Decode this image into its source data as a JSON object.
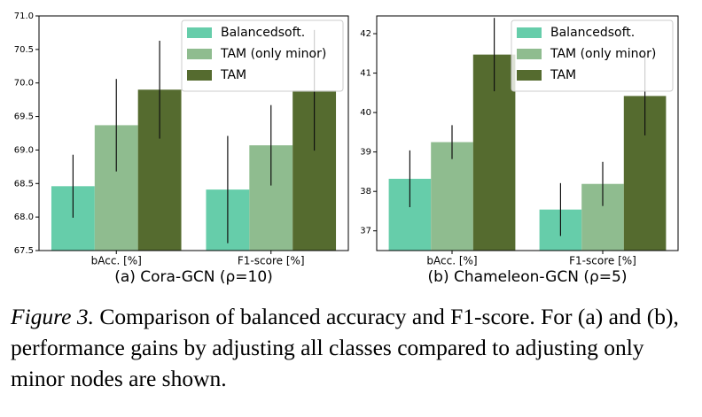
{
  "chart_data": [
    {
      "type": "bar",
      "xlabel": "(a) Cora-GCN (ρ=10)",
      "categories": [
        "bAcc. [%]",
        "F1-score [%]"
      ],
      "series": [
        {
          "name": "Balancedsoft.",
          "color": "#66cdaa",
          "values": [
            68.46,
            68.41
          ],
          "errors": [
            0.47,
            0.8
          ]
        },
        {
          "name": "TAM (only minor)",
          "color": "#8fbc8f",
          "values": [
            69.37,
            69.07
          ],
          "errors": [
            0.69,
            0.6
          ]
        },
        {
          "name": "TAM",
          "color": "#556b2f",
          "values": [
            69.9,
            69.89
          ],
          "errors": [
            0.73,
            0.9
          ]
        }
      ],
      "ylim": [
        67.5,
        71.0
      ],
      "yticks": [
        67.5,
        {
          "value": 68,
          "label": "68.0"
        },
        68.5,
        {
          "value": 69,
          "label": "69.0"
        },
        69.5,
        {
          "value": 70,
          "label": "70.0"
        },
        70.5,
        {
          "value": 71,
          "label": "71.0"
        }
      ],
      "legend": "upper right"
    },
    {
      "type": "bar",
      "xlabel": "(b) Chameleon-GCN (ρ=5)",
      "categories": [
        "bAcc. [%]",
        "F1-score [%]"
      ],
      "series": [
        {
          "name": "Balancedsoft.",
          "color": "#66cdaa",
          "values": [
            38.32,
            37.54
          ],
          "errors": [
            0.72,
            0.67
          ]
        },
        {
          "name": "TAM (only minor)",
          "color": "#8fbc8f",
          "values": [
            39.25,
            38.19
          ],
          "errors": [
            0.43,
            0.56
          ]
        },
        {
          "name": "TAM",
          "color": "#556b2f",
          "values": [
            41.47,
            40.42
          ],
          "errors": [
            0.93,
            1.0
          ]
        }
      ],
      "ylim": [
        36.5,
        42.45
      ],
      "yticks": [
        37,
        38,
        39,
        40,
        41,
        42
      ],
      "legend": "upper right"
    }
  ],
  "caption": {
    "label": "Figure 3.",
    "text": "Comparison of balanced accuracy and F1-score. For (a) and (b), performance gains by adjusting all classes compared to adjusting only minor nodes are shown."
  }
}
